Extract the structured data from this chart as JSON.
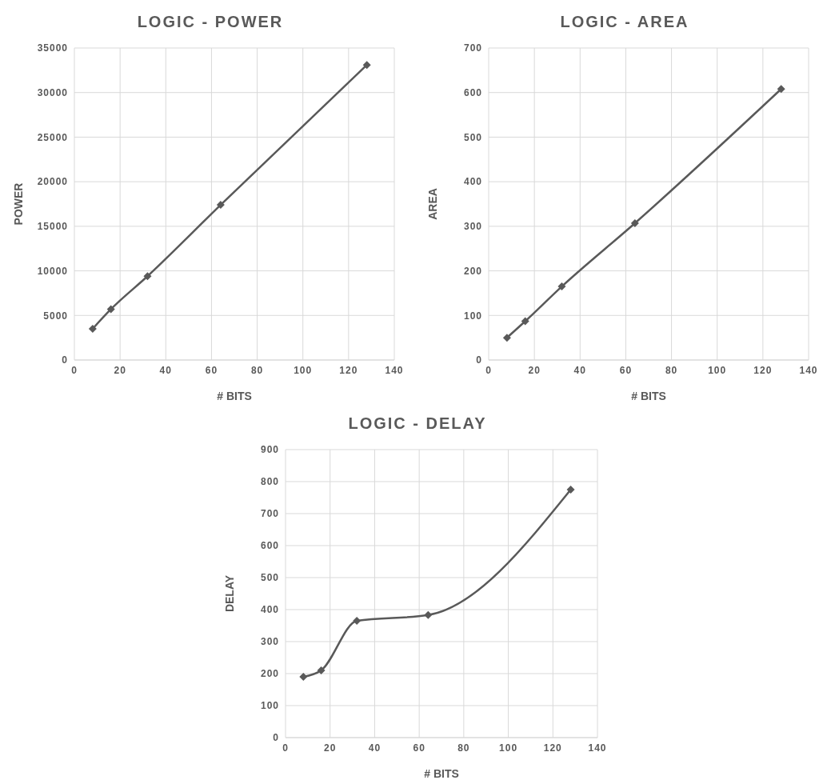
{
  "chart_data": [
    {
      "type": "line",
      "title": "LOGIC - POWER",
      "xlabel": "# BITS",
      "ylabel": "POWER",
      "x": [
        8,
        16,
        32,
        64,
        128
      ],
      "values": [
        3500,
        5700,
        9400,
        17400,
        33100
      ],
      "color": "#595959",
      "xlim": [
        0,
        140
      ],
      "xticks": [
        0,
        20,
        40,
        60,
        80,
        100,
        120,
        140
      ],
      "ylim": [
        0,
        35000
      ],
      "yticks": [
        0,
        5000,
        10000,
        15000,
        20000,
        25000,
        30000,
        35000
      ],
      "grid": true,
      "marker": "diamond"
    },
    {
      "type": "line",
      "title": "LOGIC - AREA",
      "xlabel": "# BITS",
      "ylabel": "AREA",
      "x": [
        8,
        16,
        32,
        64,
        128
      ],
      "values": [
        50,
        87,
        165,
        307,
        608
      ],
      "color": "#595959",
      "xlim": [
        0,
        140
      ],
      "xticks": [
        0,
        20,
        40,
        60,
        80,
        100,
        120,
        140
      ],
      "ylim": [
        0,
        700
      ],
      "yticks": [
        0,
        100,
        200,
        300,
        400,
        500,
        600,
        700
      ],
      "grid": true,
      "marker": "diamond"
    },
    {
      "type": "line",
      "title": "LOGIC - DELAY",
      "xlabel": "# BITS",
      "ylabel": "DELAY",
      "x": [
        8,
        16,
        32,
        64,
        128
      ],
      "values": [
        190,
        210,
        365,
        383,
        775
      ],
      "color": "#595959",
      "xlim": [
        0,
        140
      ],
      "xticks": [
        0,
        20,
        40,
        60,
        80,
        100,
        120,
        140
      ],
      "ylim": [
        0,
        900
      ],
      "yticks": [
        0,
        100,
        200,
        300,
        400,
        500,
        600,
        700,
        800,
        900
      ],
      "grid": true,
      "marker": "diamond"
    }
  ]
}
